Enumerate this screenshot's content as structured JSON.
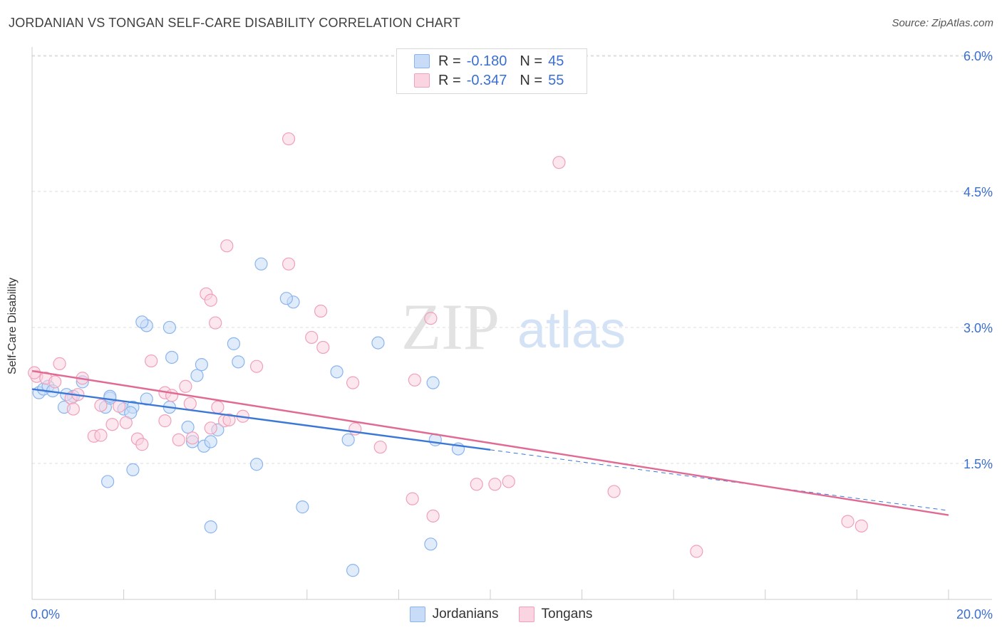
{
  "header": {
    "title": "JORDANIAN VS TONGAN SELF-CARE DISABILITY CORRELATION CHART",
    "source": "Source: ZipAtlas.com"
  },
  "watermark": {
    "zip": "ZIP",
    "atlas": "atlas"
  },
  "legend": {
    "rows": [
      {
        "r_label": "R =",
        "r_value": "-0.180",
        "n_label": "N =",
        "n_value": "45",
        "color": "#8ab4f0",
        "fill": "#c8dcf8"
      },
      {
        "r_label": "R =",
        "r_value": "-0.347",
        "n_label": "N =",
        "n_value": "55",
        "color": "#f0a0b8",
        "fill": "#fad4e0"
      }
    ]
  },
  "chart_data": {
    "type": "scatter",
    "title": "JORDANIAN VS TONGAN SELF-CARE DISABILITY CORRELATION CHART",
    "xlabel": "",
    "ylabel": "Self-Care Disability",
    "xlim": [
      0,
      20
    ],
    "ylim": [
      0,
      6.2
    ],
    "x_tick_labels": [
      "0.0%",
      "20.0%"
    ],
    "y_ticks": [
      1.5,
      3.0,
      4.5,
      6.0
    ],
    "y_tick_labels": [
      "1.5%",
      "3.0%",
      "4.5%",
      "6.0%"
    ],
    "grid": "horizontal dashed",
    "legend_position": "top-center",
    "series": [
      {
        "name": "Jordanians",
        "color": "#3a78d8",
        "marker_stroke": "#8ab4f0",
        "marker_fill": "#c8dcf8",
        "trend": {
          "x0": 0,
          "y0": 2.32,
          "x1": 10,
          "y1": 1.65,
          "dashed_to_x": 20,
          "dashed_to_y": 0.98
        },
        "points": [
          {
            "x": 0.15,
            "y": 2.28
          },
          {
            "x": 0.25,
            "y": 2.32
          },
          {
            "x": 0.35,
            "y": 2.35
          },
          {
            "x": 0.45,
            "y": 2.3
          },
          {
            "x": 0.7,
            "y": 2.12
          },
          {
            "x": 0.9,
            "y": 2.24
          },
          {
            "x": 0.75,
            "y": 2.26
          },
          {
            "x": 1.1,
            "y": 2.4
          },
          {
            "x": 1.6,
            "y": 2.12
          },
          {
            "x": 1.7,
            "y": 2.22
          },
          {
            "x": 2.0,
            "y": 2.1
          },
          {
            "x": 2.2,
            "y": 2.12
          },
          {
            "x": 2.5,
            "y": 2.21
          },
          {
            "x": 3.0,
            "y": 2.12
          },
          {
            "x": 1.7,
            "y": 2.24
          },
          {
            "x": 2.15,
            "y": 2.06
          },
          {
            "x": 2.5,
            "y": 3.02
          },
          {
            "x": 2.4,
            "y": 3.06
          },
          {
            "x": 3.05,
            "y": 2.67
          },
          {
            "x": 3.0,
            "y": 3.0
          },
          {
            "x": 3.6,
            "y": 2.47
          },
          {
            "x": 3.7,
            "y": 2.59
          },
          {
            "x": 4.05,
            "y": 1.87
          },
          {
            "x": 4.4,
            "y": 2.82
          },
          {
            "x": 4.5,
            "y": 2.62
          },
          {
            "x": 3.4,
            "y": 1.9
          },
          {
            "x": 3.5,
            "y": 1.74
          },
          {
            "x": 3.75,
            "y": 1.69
          },
          {
            "x": 3.9,
            "y": 1.74
          },
          {
            "x": 5.0,
            "y": 3.7
          },
          {
            "x": 5.7,
            "y": 3.28
          },
          {
            "x": 5.55,
            "y": 3.32
          },
          {
            "x": 6.65,
            "y": 2.51
          },
          {
            "x": 7.55,
            "y": 2.83
          },
          {
            "x": 6.9,
            "y": 1.76
          },
          {
            "x": 8.8,
            "y": 1.76
          },
          {
            "x": 9.3,
            "y": 1.66
          },
          {
            "x": 8.75,
            "y": 2.39
          },
          {
            "x": 1.65,
            "y": 1.3
          },
          {
            "x": 2.2,
            "y": 1.43
          },
          {
            "x": 4.9,
            "y": 1.49
          },
          {
            "x": 5.9,
            "y": 1.02
          },
          {
            "x": 3.9,
            "y": 0.8
          },
          {
            "x": 8.7,
            "y": 0.61
          },
          {
            "x": 7.0,
            "y": 0.32
          }
        ]
      },
      {
        "name": "Tongans",
        "color": "#e06a94",
        "marker_stroke": "#f0a0b8",
        "marker_fill": "#fad4e0",
        "trend": {
          "x0": 0,
          "y0": 2.52,
          "x1": 20,
          "y1": 0.93
        },
        "points": [
          {
            "x": 0.1,
            "y": 2.46
          },
          {
            "x": 0.3,
            "y": 2.44
          },
          {
            "x": 0.5,
            "y": 2.4
          },
          {
            "x": 0.6,
            "y": 2.6
          },
          {
            "x": 0.85,
            "y": 2.22
          },
          {
            "x": 0.9,
            "y": 2.1
          },
          {
            "x": 1.1,
            "y": 2.44
          },
          {
            "x": 1.0,
            "y": 2.26
          },
          {
            "x": 1.5,
            "y": 2.14
          },
          {
            "x": 1.9,
            "y": 2.13
          },
          {
            "x": 1.35,
            "y": 1.8
          },
          {
            "x": 1.5,
            "y": 1.81
          },
          {
            "x": 1.75,
            "y": 1.93
          },
          {
            "x": 2.05,
            "y": 1.95
          },
          {
            "x": 2.3,
            "y": 1.77
          },
          {
            "x": 2.4,
            "y": 1.71
          },
          {
            "x": 2.6,
            "y": 2.63
          },
          {
            "x": 2.9,
            "y": 2.28
          },
          {
            "x": 3.05,
            "y": 2.25
          },
          {
            "x": 2.9,
            "y": 1.97
          },
          {
            "x": 3.2,
            "y": 1.76
          },
          {
            "x": 3.5,
            "y": 1.78
          },
          {
            "x": 3.35,
            "y": 2.35
          },
          {
            "x": 3.45,
            "y": 2.16
          },
          {
            "x": 3.9,
            "y": 1.89
          },
          {
            "x": 4.05,
            "y": 2.12
          },
          {
            "x": 4.2,
            "y": 1.97
          },
          {
            "x": 4.3,
            "y": 1.98
          },
          {
            "x": 4.0,
            "y": 3.05
          },
          {
            "x": 3.8,
            "y": 3.37
          },
          {
            "x": 3.9,
            "y": 3.3
          },
          {
            "x": 4.25,
            "y": 3.9
          },
          {
            "x": 4.6,
            "y": 2.02
          },
          {
            "x": 4.9,
            "y": 2.57
          },
          {
            "x": 5.6,
            "y": 3.7
          },
          {
            "x": 5.6,
            "y": 5.08
          },
          {
            "x": 6.1,
            "y": 2.89
          },
          {
            "x": 6.35,
            "y": 2.78
          },
          {
            "x": 6.3,
            "y": 3.18
          },
          {
            "x": 7.0,
            "y": 2.39
          },
          {
            "x": 7.05,
            "y": 1.88
          },
          {
            "x": 7.6,
            "y": 1.68
          },
          {
            "x": 8.35,
            "y": 2.42
          },
          {
            "x": 8.7,
            "y": 3.1
          },
          {
            "x": 8.3,
            "y": 1.11
          },
          {
            "x": 8.75,
            "y": 0.92
          },
          {
            "x": 9.7,
            "y": 1.27
          },
          {
            "x": 10.1,
            "y": 1.27
          },
          {
            "x": 10.4,
            "y": 1.3
          },
          {
            "x": 11.5,
            "y": 4.82
          },
          {
            "x": 12.7,
            "y": 1.19
          },
          {
            "x": 14.5,
            "y": 0.53
          },
          {
            "x": 17.8,
            "y": 0.86
          },
          {
            "x": 18.1,
            "y": 0.81
          },
          {
            "x": 0.05,
            "y": 2.5
          }
        ]
      }
    ]
  }
}
